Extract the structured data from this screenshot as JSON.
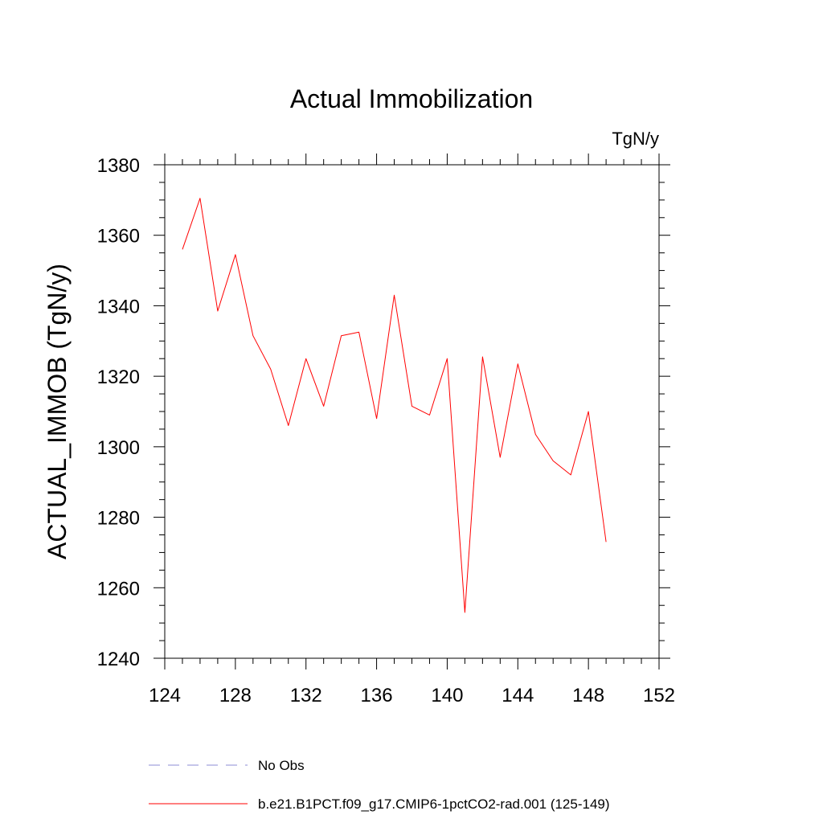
{
  "chart_data": {
    "type": "line",
    "title": "Actual Immobilization",
    "units_label": "TgN/y",
    "xlabel": "",
    "ylabel": "ACTUAL_IMMOB  (TgN/y)",
    "xlim": [
      124,
      152
    ],
    "ylim": [
      1240,
      1380
    ],
    "x_ticks": [
      124,
      128,
      132,
      136,
      140,
      144,
      148,
      152
    ],
    "y_ticks": [
      1240,
      1260,
      1280,
      1300,
      1320,
      1340,
      1360,
      1380
    ],
    "grid": false,
    "series": [
      {
        "name": "b.e21.B1PCT.f09_g17.CMIP6-1pctCO2-rad.001 (125-149)",
        "color": "#ff0000",
        "x": [
          125,
          126,
          127,
          128,
          129,
          130,
          131,
          132,
          133,
          134,
          135,
          136,
          137,
          138,
          139,
          140,
          141,
          142,
          143,
          144,
          145,
          146,
          147,
          148,
          149
        ],
        "y": [
          1356,
          1370.5,
          1338.5,
          1354.5,
          1331.5,
          1322,
          1306,
          1325,
          1311.5,
          1331.5,
          1332.5,
          1308,
          1343,
          1311.5,
          1309,
          1325,
          1253,
          1325.5,
          1297,
          1323.5,
          1303.5,
          1296,
          1292,
          1310,
          1273
        ]
      }
    ],
    "legend": {
      "placement": "bottom",
      "entries": [
        {
          "label": "No Obs",
          "color": "#8b8bd6",
          "style": "dashed"
        },
        {
          "label": "b.e21.B1PCT.f09_g17.CMIP6-1pctCO2-rad.001 (125-149)",
          "color": "#ff0000",
          "style": "solid"
        }
      ]
    }
  }
}
